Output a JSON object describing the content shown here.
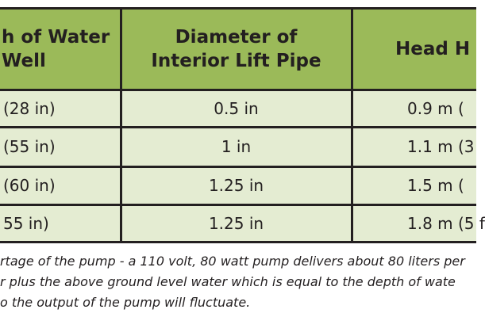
{
  "table": {
    "header": [
      [
        "h of Water",
        "Well"
      ],
      [
        "Diameter of",
        "Interior Lift Pipe"
      ],
      [
        "Head H"
      ]
    ],
    "rows": [
      [
        "(28 in)",
        "0.5 in",
        "0.9 m ("
      ],
      [
        "(55 in)",
        "1 in",
        "1.1 m (3"
      ],
      [
        "(60 in)",
        "1.25 in",
        "1.5 m ("
      ],
      [
        "55 in)",
        "1.25 in",
        "1.8 m (5 f"
      ]
    ]
  },
  "footnote": [
    "rtage of the pump - a 110 volt, 80 watt pump delivers about 80 liters per",
    "r plus the above ground level water which is equal to the depth of wate",
    "o the output of the pump will fluctuate."
  ]
}
